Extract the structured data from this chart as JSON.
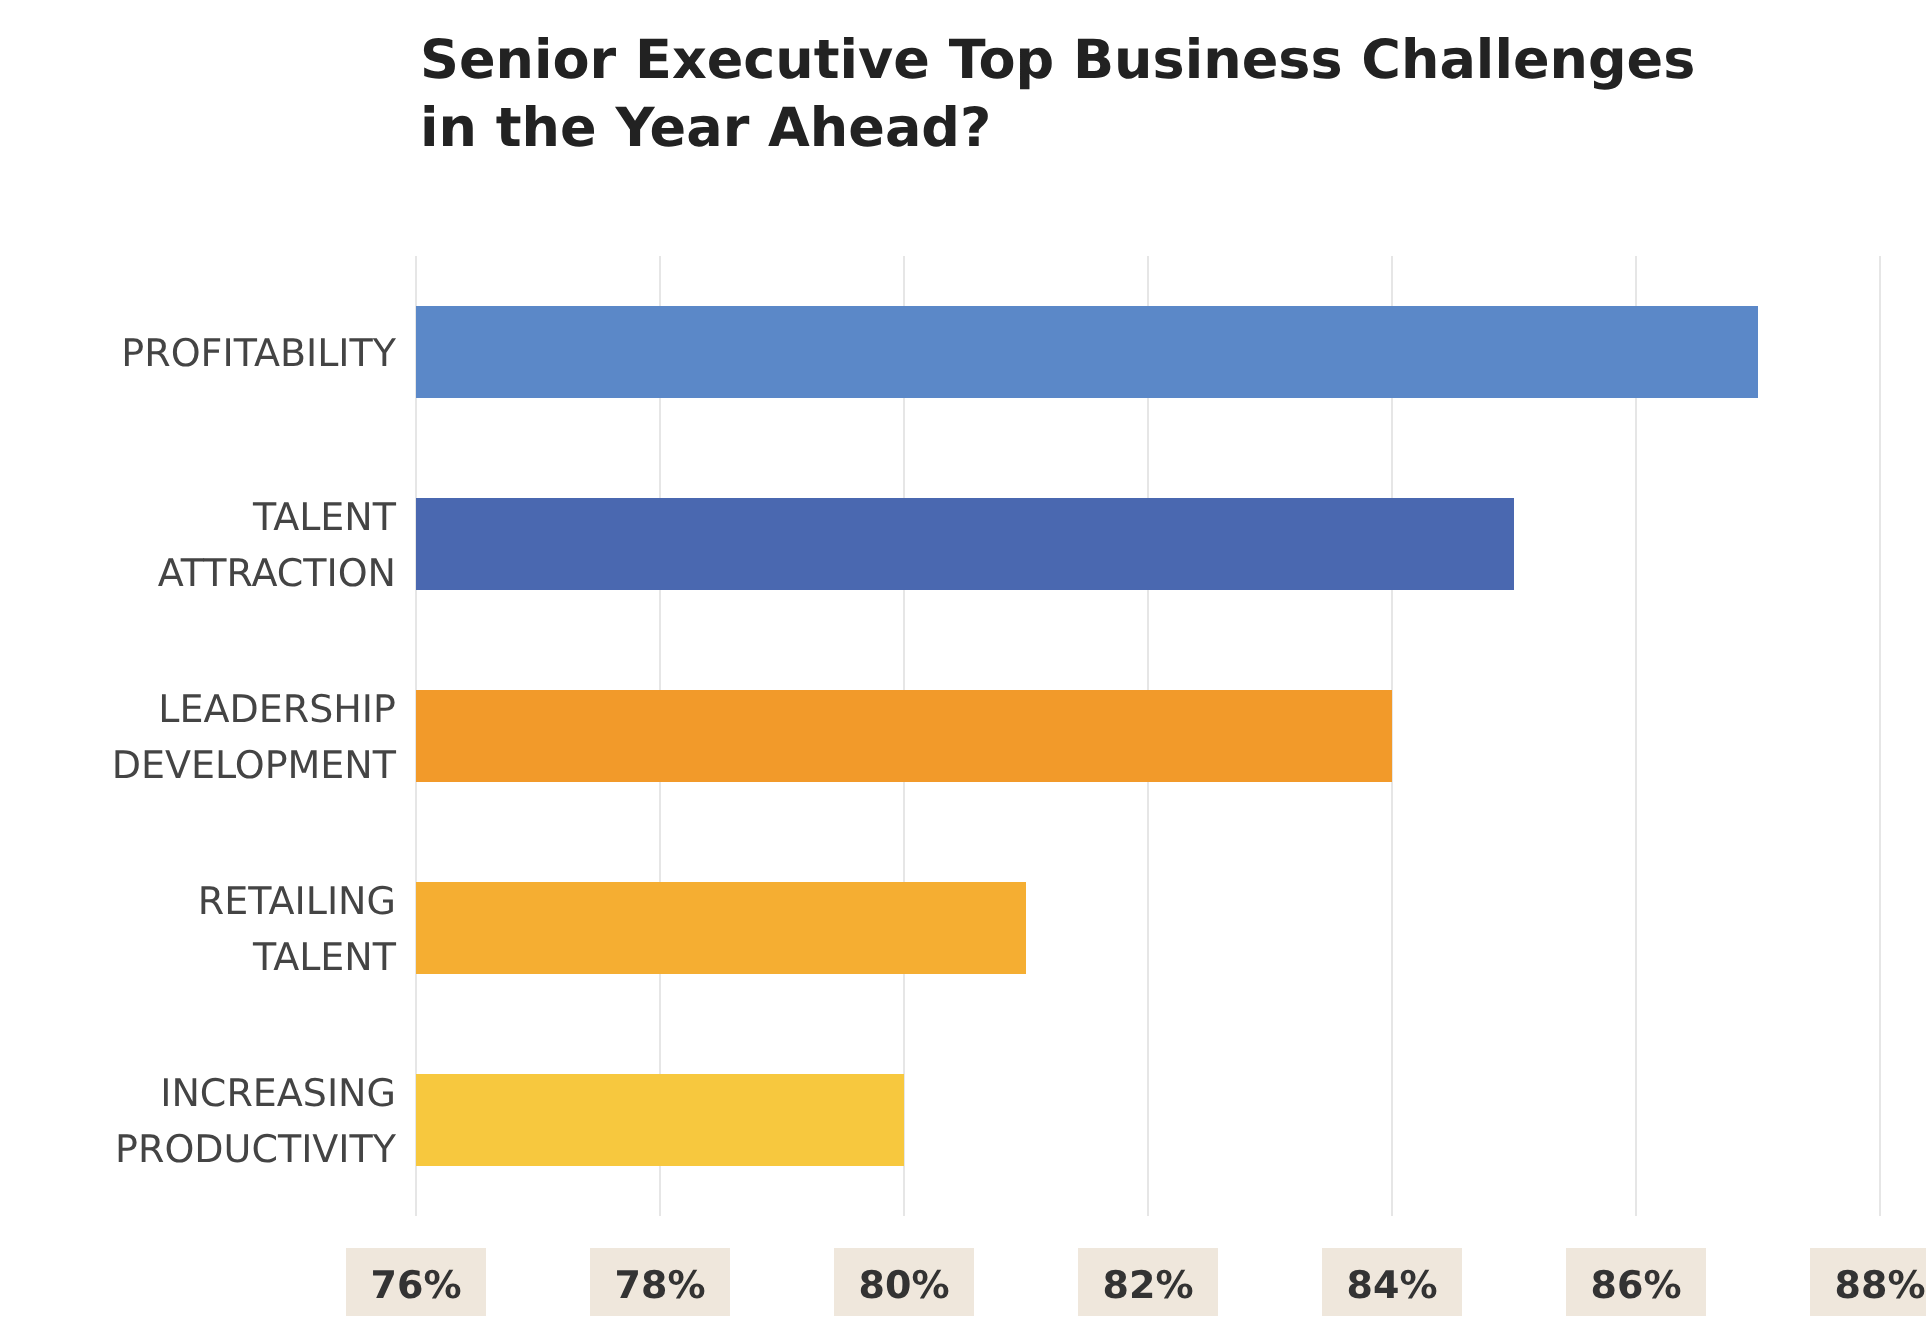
{
  "chart_data": {
    "type": "bar",
    "orientation": "horizontal",
    "title": "Senior Executive Top Business Challenges\nin the Year Ahead?",
    "categories": [
      "PROFITABILITY",
      "TALENT ATTRACTION",
      "LEADERSHIP DEVELOPMENT",
      "RETAILING TALENT",
      "INCREASING PRODUCTIVITY"
    ],
    "values": [
      87,
      85,
      84,
      81,
      80
    ],
    "colors": [
      "#5b88c8",
      "#4a68b0",
      "#f29a2a",
      "#f5ae32",
      "#f7c83e"
    ],
    "xlim": [
      76,
      88
    ],
    "xticks": [
      {
        "value": 76,
        "label": "76%"
      },
      {
        "value": 78,
        "label": "78%"
      },
      {
        "value": 80,
        "label": "80%"
      },
      {
        "value": 82,
        "label": "82%"
      },
      {
        "value": 84,
        "label": "84%"
      },
      {
        "value": 86,
        "label": "86%"
      },
      {
        "value": 88,
        "label": "88%"
      }
    ],
    "grid": "x"
  }
}
